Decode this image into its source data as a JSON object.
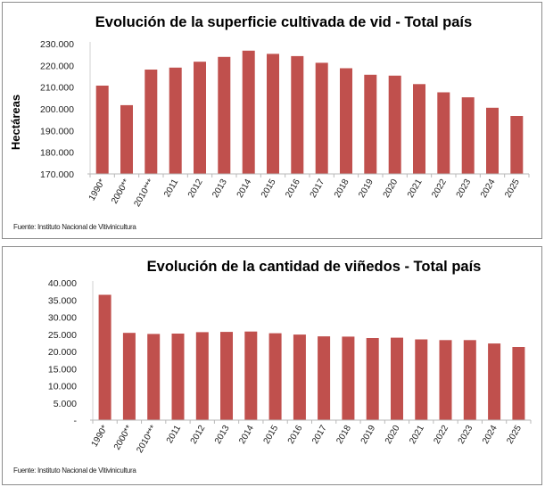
{
  "chart_data": [
    {
      "type": "bar",
      "title": "Evolución de la superficie cultivada de vid - Total país",
      "xlabel": "",
      "ylabel": "Hectáreas",
      "ylim": [
        170000,
        230000
      ],
      "yticks": [
        170000,
        180000,
        190000,
        200000,
        210000,
        220000,
        230000
      ],
      "ytick_labels": [
        "170.000",
        "180.000",
        "190.000",
        "200.000",
        "210.000",
        "220.000",
        "230.000"
      ],
      "categories": [
        "1990*",
        "2000**",
        "2010***",
        "2011",
        "2012",
        "2013",
        "2014",
        "2015",
        "2016",
        "2017",
        "2018",
        "2019",
        "2020",
        "2021",
        "2022",
        "2023",
        "2024",
        "2025"
      ],
      "values": [
        210700,
        201700,
        218100,
        219000,
        221700,
        223900,
        226800,
        225300,
        224300,
        221200,
        218700,
        215700,
        215300,
        211400,
        207600,
        205300,
        200500,
        196700
      ],
      "grid": false,
      "legend": "none",
      "bar_color": "#c0504d",
      "source": "Fuente: Instituto Nacional de Vitivinicultura"
    },
    {
      "type": "bar",
      "title": "Evolución de la cantidad de viñedos - Total país",
      "xlabel": "",
      "ylabel": "",
      "ylim": [
        0,
        40000
      ],
      "yticks": [
        0,
        5000,
        10000,
        15000,
        20000,
        25000,
        30000,
        35000,
        40000
      ],
      "ytick_labels": [
        "-",
        "5.000",
        "10.000",
        "15.000",
        "20.000",
        "25.000",
        "30.000",
        "35.000",
        "40.000"
      ],
      "categories": [
        "1990*",
        "2000**",
        "2010***",
        "2011",
        "2012",
        "2013",
        "2014",
        "2015",
        "2016",
        "2017",
        "2018",
        "2019",
        "2020",
        "2021",
        "2022",
        "2023",
        "2024",
        "2025"
      ],
      "values": [
        36500,
        25400,
        25100,
        25200,
        25600,
        25700,
        25800,
        25300,
        24900,
        24400,
        24300,
        23900,
        24000,
        23500,
        23300,
        23300,
        22300,
        21300
      ],
      "grid": false,
      "legend": "none",
      "bar_color": "#c0504d",
      "source": "Fuente: Instituto Nacional de Vitivinicultura"
    }
  ]
}
